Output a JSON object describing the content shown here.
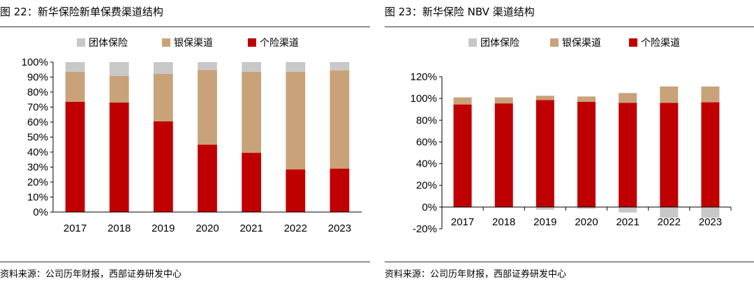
{
  "figures": [
    {
      "title": "图 22：新华保险新单保费渠道结构",
      "source": "资料来源：公司历年财报，西部证券研发中心"
    },
    {
      "title": "图 23：新华保险 NBV 渠道结构",
      "source": "资料来源：公司历年财报，西部证券研发中心"
    }
  ],
  "chart_data": [
    {
      "type": "bar",
      "stacked": true,
      "title": "新华保险新单保费渠道结构",
      "categories": [
        "2017",
        "2018",
        "2019",
        "2020",
        "2021",
        "2022",
        "2023"
      ],
      "series": [
        {
          "name": "个险渠道",
          "color": "#c00000",
          "values": [
            73.5,
            73.0,
            60.5,
            45.0,
            39.5,
            28.5,
            29.0
          ]
        },
        {
          "name": "银保渠道",
          "color": "#c9a27a",
          "values": [
            20.0,
            17.8,
            31.7,
            49.8,
            54.0,
            65.0,
            65.5
          ]
        },
        {
          "name": "团体保险",
          "color": "#c8c8c8",
          "values": [
            6.5,
            9.2,
            7.8,
            5.2,
            6.5,
            6.5,
            5.5
          ]
        }
      ],
      "legend_order": [
        "团体保险",
        "银保渠道",
        "个险渠道"
      ],
      "ylim": [
        0,
        100
      ],
      "yticks": [
        0,
        10,
        20,
        30,
        40,
        50,
        60,
        70,
        80,
        90,
        100
      ],
      "ytick_labels": [
        "0%",
        "10%",
        "20%",
        "30%",
        "40%",
        "50%",
        "60%",
        "70%",
        "80%",
        "90%",
        "100%"
      ],
      "legend_position": "top",
      "xlabel": "",
      "ylabel": ""
    },
    {
      "type": "bar",
      "stacked": true,
      "title": "新华保险 NBV 渠道结构",
      "categories": [
        "2017",
        "2018",
        "2019",
        "2020",
        "2021",
        "2022",
        "2023"
      ],
      "series": [
        {
          "name": "个险渠道",
          "color": "#c00000",
          "values": [
            94.5,
            95.5,
            98.5,
            97.0,
            96.0,
            96.0,
            96.5
          ]
        },
        {
          "name": "银保渠道",
          "color": "#c9a27a",
          "values": [
            6.5,
            5.5,
            4.0,
            4.8,
            9.0,
            15.0,
            14.5
          ]
        },
        {
          "name": "团体保险",
          "color": "#c8c8c8",
          "values": [
            -0.5,
            -0.5,
            -2.5,
            -1.5,
            -5.0,
            -10.0,
            -10.0
          ]
        }
      ],
      "legend_order": [
        "团体保险",
        "银保渠道",
        "个险渠道"
      ],
      "ylim": [
        -20,
        120
      ],
      "yticks": [
        -20,
        0,
        20,
        40,
        60,
        80,
        100,
        120
      ],
      "ytick_labels": [
        "-20%",
        "0%",
        "20%",
        "40%",
        "60%",
        "80%",
        "100%",
        "120%"
      ],
      "legend_position": "top",
      "xlabel": "",
      "ylabel": ""
    }
  ]
}
